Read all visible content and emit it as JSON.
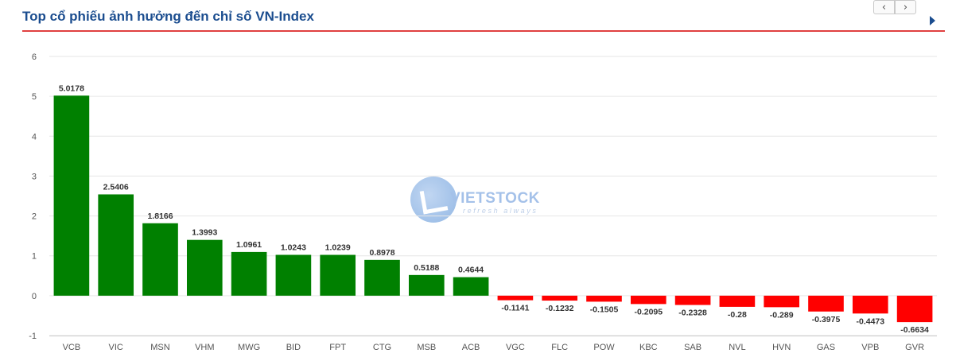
{
  "header": {
    "title": "Top cổ phiếu ảnh hưởng đến chỉ số VN-Index",
    "prev_label": "‹",
    "next_label": "›"
  },
  "watermark": {
    "word": "VIETSTOCK",
    "tagline": "refresh always"
  },
  "colors": {
    "positive": "#008000",
    "negative": "#ff0000",
    "title": "#1b4d8f",
    "rule": "#e04040"
  },
  "chart_data": {
    "type": "bar",
    "title": "",
    "xlabel": "",
    "ylabel": "",
    "ylim": [
      -1,
      6
    ],
    "yticks": [
      -1,
      0,
      1,
      2,
      3,
      4,
      5,
      6
    ],
    "grid": true,
    "categories": [
      "VCB",
      "VIC",
      "MSN",
      "VHM",
      "MWG",
      "BID",
      "FPT",
      "CTG",
      "MSB",
      "ACB",
      "VGC",
      "FLC",
      "POW",
      "KBC",
      "SAB",
      "NVL",
      "HVN",
      "GAS",
      "VPB",
      "GVR"
    ],
    "values": [
      5.0178,
      2.5406,
      1.8166,
      1.3993,
      1.0961,
      1.0243,
      1.0239,
      0.8978,
      0.5188,
      0.4644,
      -0.1141,
      -0.1232,
      -0.1505,
      -0.2095,
      -0.2328,
      -0.28,
      -0.289,
      -0.3975,
      -0.4473,
      -0.6634
    ],
    "labels": [
      "5.0178",
      "2.5406",
      "1.8166",
      "1.3993",
      "1.0961",
      "1.0243",
      "1.0239",
      "0.8978",
      "0.5188",
      "0.4644",
      "-0.1141",
      "-0.1232",
      "-0.1505",
      "-0.2095",
      "-0.2328",
      "-0.28",
      "-0.289",
      "-0.3975",
      "-0.4473",
      "-0.6634"
    ]
  }
}
